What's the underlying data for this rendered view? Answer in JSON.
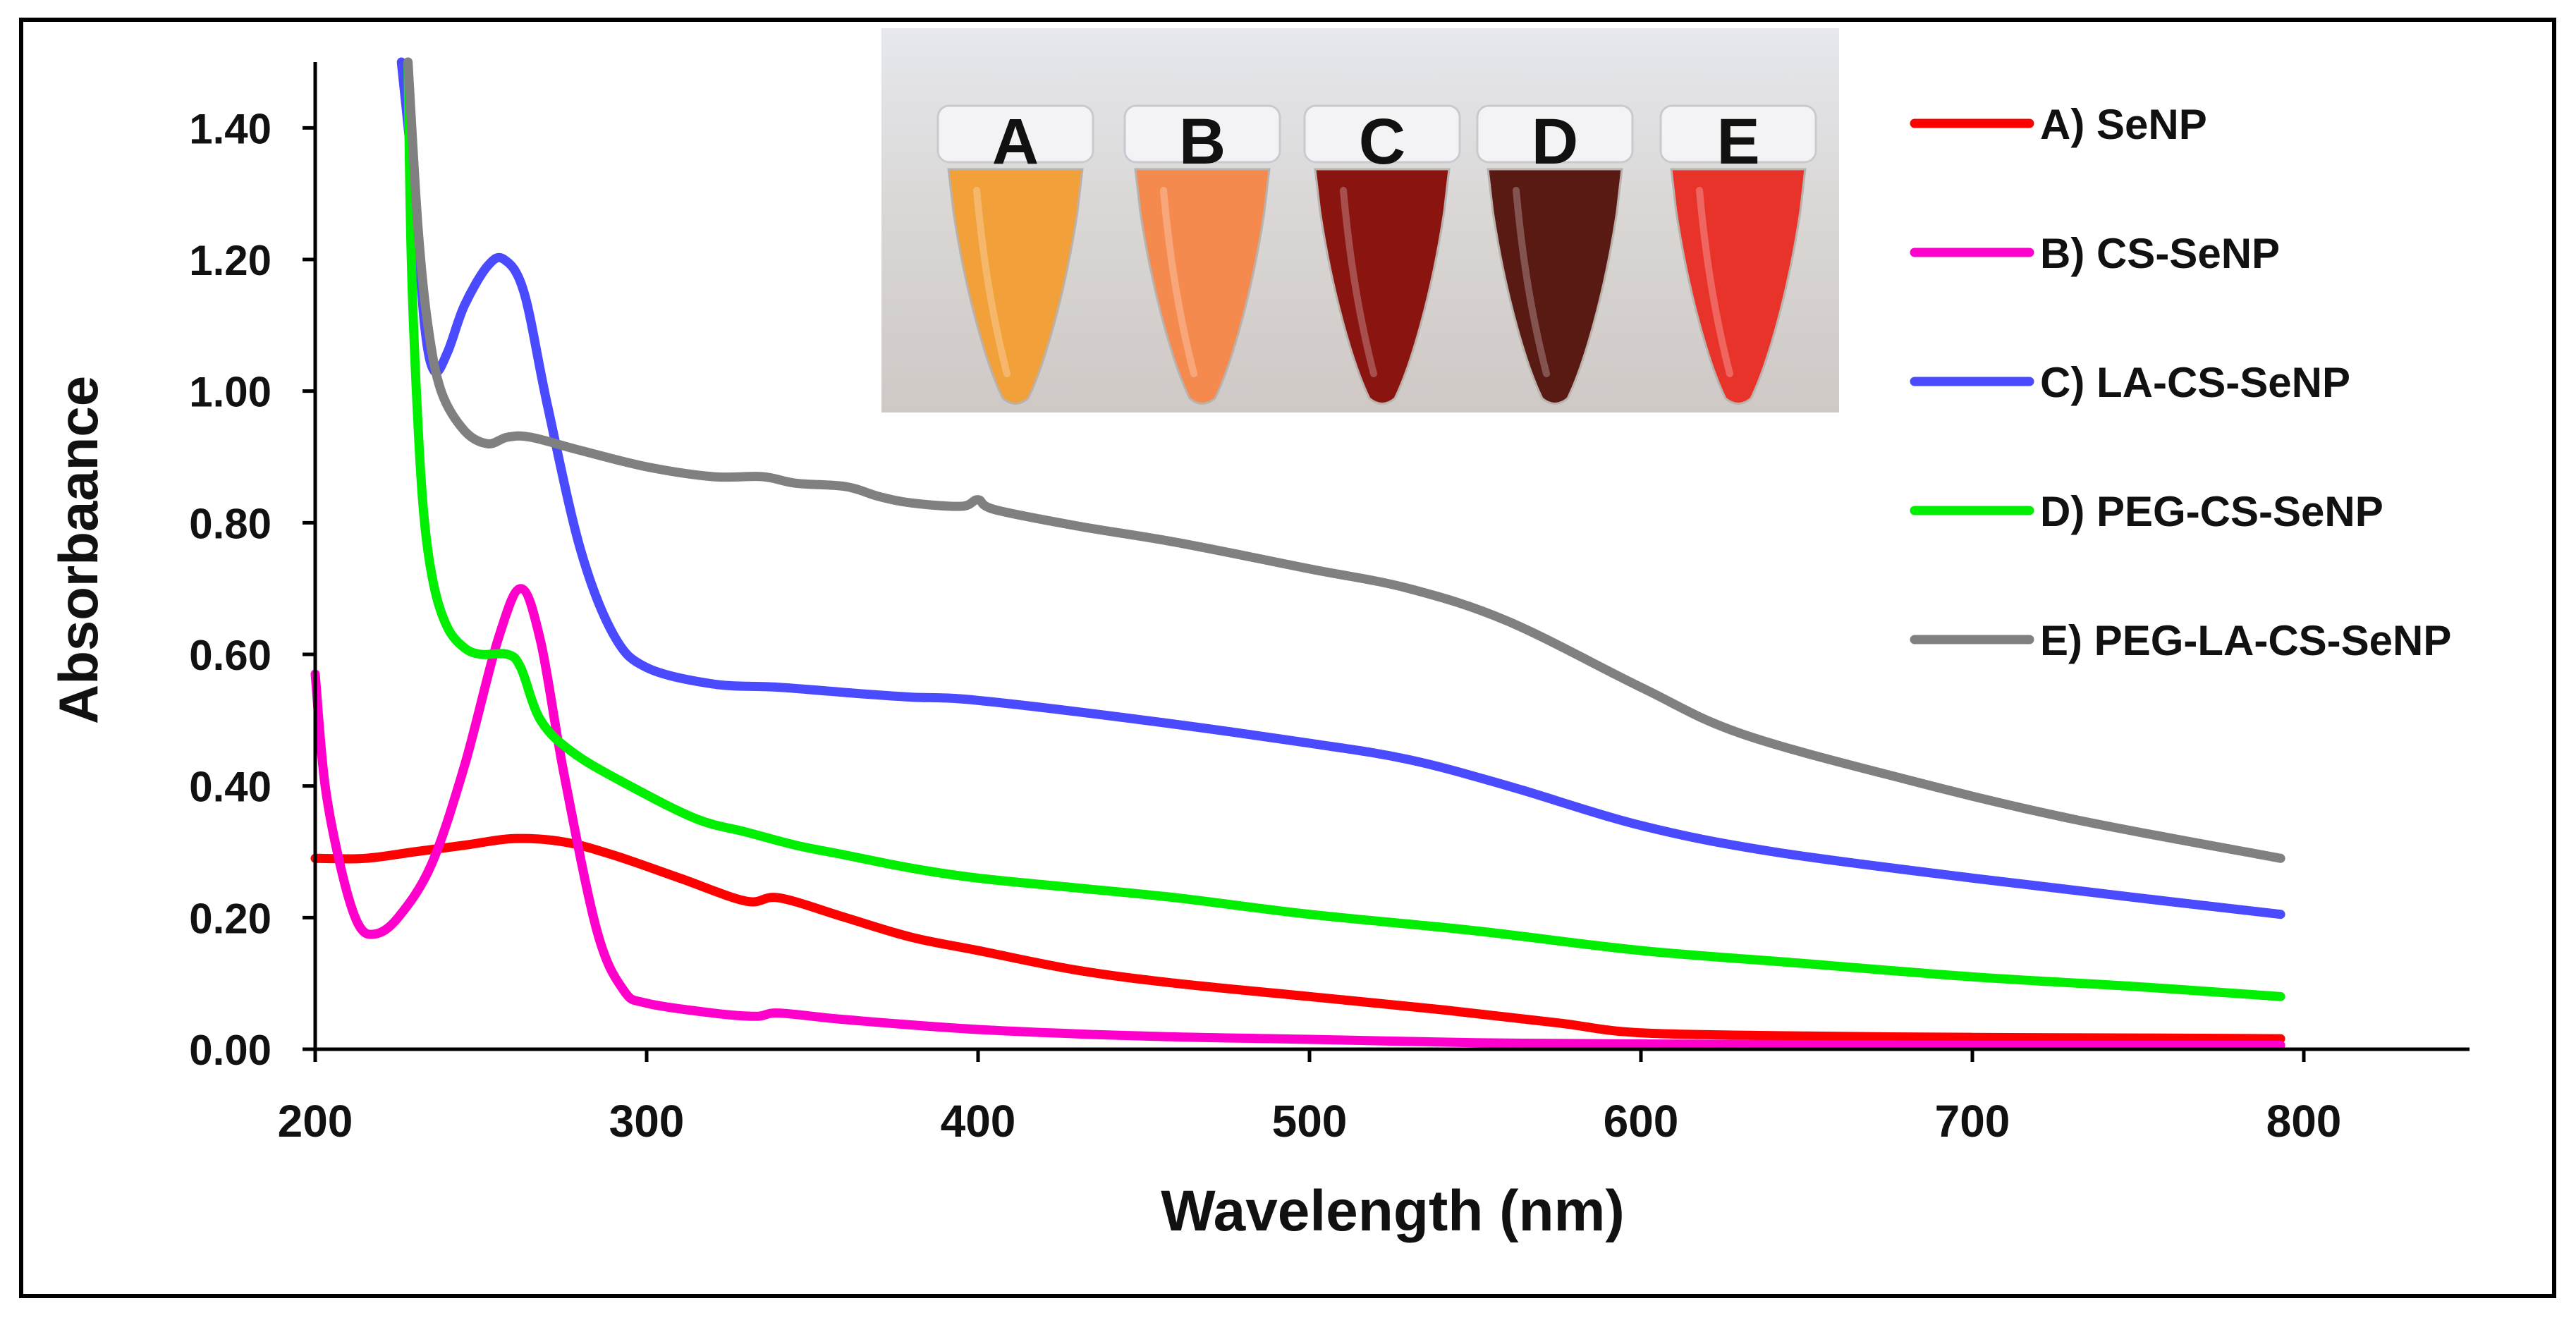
{
  "chart_data": {
    "type": "line",
    "title": "",
    "xlabel": "Wavelength (nm)",
    "ylabel": "Absorbaance",
    "xlim": [
      200,
      850
    ],
    "ylim": [
      0,
      1.5
    ],
    "x_ticks": [
      200,
      300,
      400,
      500,
      600,
      700,
      800
    ],
    "x_tick_labels": [
      "200",
      "300",
      "400",
      "500",
      "600",
      "700",
      "800"
    ],
    "y_ticks": [
      0,
      0.2,
      0.4,
      0.6,
      0.8,
      1.0,
      1.2,
      1.4
    ],
    "y_tick_labels": [
      "0.00",
      "0.20",
      "0.40",
      "0.60",
      "0.80",
      "1.00",
      "1.20",
      "1.40"
    ],
    "grid": false,
    "legend_position": "right",
    "series": [
      {
        "name": "A) SeNP",
        "color": "#ff0000",
        "points": [
          [
            200,
            0.29
          ],
          [
            215,
            0.29
          ],
          [
            230,
            0.3
          ],
          [
            245,
            0.31
          ],
          [
            260,
            0.32
          ],
          [
            275,
            0.315
          ],
          [
            290,
            0.295
          ],
          [
            310,
            0.26
          ],
          [
            330,
            0.225
          ],
          [
            340,
            0.23
          ],
          [
            360,
            0.2
          ],
          [
            380,
            0.17
          ],
          [
            400,
            0.15
          ],
          [
            430,
            0.12
          ],
          [
            460,
            0.1
          ],
          [
            500,
            0.08
          ],
          [
            540,
            0.06
          ],
          [
            575,
            0.04
          ],
          [
            600,
            0.025
          ],
          [
            650,
            0.02
          ],
          [
            700,
            0.018
          ],
          [
            750,
            0.017
          ],
          [
            793,
            0.016
          ]
        ]
      },
      {
        "name": "B) CS-SeNP",
        "color": "#ff00cc",
        "points": [
          [
            200,
            0.57
          ],
          [
            203,
            0.4
          ],
          [
            208,
            0.27
          ],
          [
            213,
            0.19
          ],
          [
            218,
            0.175
          ],
          [
            225,
            0.2
          ],
          [
            235,
            0.28
          ],
          [
            245,
            0.43
          ],
          [
            255,
            0.62
          ],
          [
            262,
            0.7
          ],
          [
            268,
            0.62
          ],
          [
            275,
            0.42
          ],
          [
            285,
            0.18
          ],
          [
            293,
            0.09
          ],
          [
            300,
            0.07
          ],
          [
            320,
            0.055
          ],
          [
            333,
            0.05
          ],
          [
            340,
            0.055
          ],
          [
            360,
            0.045
          ],
          [
            400,
            0.03
          ],
          [
            450,
            0.02
          ],
          [
            500,
            0.015
          ],
          [
            550,
            0.01
          ],
          [
            600,
            0.008
          ],
          [
            700,
            0.006
          ],
          [
            793,
            0.006
          ]
        ]
      },
      {
        "name": "C) LA-CS-SeNP",
        "color": "#4a4aff",
        "points": [
          [
            226,
            1.5
          ],
          [
            230,
            1.3
          ],
          [
            233,
            1.1
          ],
          [
            236,
            1.03
          ],
          [
            240,
            1.06
          ],
          [
            245,
            1.13
          ],
          [
            252,
            1.19
          ],
          [
            257,
            1.2
          ],
          [
            263,
            1.15
          ],
          [
            270,
            0.98
          ],
          [
            280,
            0.76
          ],
          [
            290,
            0.63
          ],
          [
            300,
            0.58
          ],
          [
            320,
            0.555
          ],
          [
            340,
            0.55
          ],
          [
            365,
            0.54
          ],
          [
            380,
            0.535
          ],
          [
            400,
            0.53
          ],
          [
            450,
            0.5
          ],
          [
            500,
            0.465
          ],
          [
            530,
            0.44
          ],
          [
            560,
            0.4
          ],
          [
            600,
            0.34
          ],
          [
            640,
            0.3
          ],
          [
            700,
            0.26
          ],
          [
            750,
            0.23
          ],
          [
            793,
            0.205
          ]
        ]
      },
      {
        "name": "D) PEG-CS-SeNP",
        "color": "#00ee00",
        "points": [
          [
            228,
            1.5
          ],
          [
            229,
            1.2
          ],
          [
            231,
            0.95
          ],
          [
            233,
            0.8
          ],
          [
            236,
            0.7
          ],
          [
            240,
            0.64
          ],
          [
            245,
            0.61
          ],
          [
            250,
            0.6
          ],
          [
            258,
            0.6
          ],
          [
            262,
            0.58
          ],
          [
            268,
            0.5
          ],
          [
            278,
            0.45
          ],
          [
            295,
            0.4
          ],
          [
            315,
            0.35
          ],
          [
            330,
            0.33
          ],
          [
            345,
            0.31
          ],
          [
            360,
            0.295
          ],
          [
            380,
            0.275
          ],
          [
            400,
            0.26
          ],
          [
            430,
            0.245
          ],
          [
            460,
            0.23
          ],
          [
            500,
            0.205
          ],
          [
            550,
            0.18
          ],
          [
            600,
            0.15
          ],
          [
            650,
            0.13
          ],
          [
            700,
            0.11
          ],
          [
            750,
            0.095
          ],
          [
            793,
            0.08
          ]
        ]
      },
      {
        "name": "E) PEG-LA-CS-SeNP",
        "color": "#808080",
        "points": [
          [
            228,
            1.5
          ],
          [
            231,
            1.25
          ],
          [
            234,
            1.1
          ],
          [
            238,
            1.0
          ],
          [
            245,
            0.94
          ],
          [
            252,
            0.92
          ],
          [
            258,
            0.93
          ],
          [
            265,
            0.93
          ],
          [
            280,
            0.91
          ],
          [
            300,
            0.885
          ],
          [
            320,
            0.87
          ],
          [
            335,
            0.87
          ],
          [
            345,
            0.86
          ],
          [
            360,
            0.855
          ],
          [
            370,
            0.84
          ],
          [
            380,
            0.83
          ],
          [
            395,
            0.825
          ],
          [
            400,
            0.835
          ],
          [
            405,
            0.82
          ],
          [
            430,
            0.795
          ],
          [
            460,
            0.77
          ],
          [
            500,
            0.73
          ],
          [
            530,
            0.7
          ],
          [
            560,
            0.65
          ],
          [
            600,
            0.55
          ],
          [
            630,
            0.48
          ],
          [
            680,
            0.41
          ],
          [
            730,
            0.35
          ],
          [
            793,
            0.29
          ]
        ]
      }
    ],
    "inset": {
      "description_labels": [
        "A",
        "B",
        "C",
        "D",
        "E"
      ],
      "tube_colors": [
        "#f2a03a",
        "#f48a4e",
        "#8a1410",
        "#5a1a14",
        "#e8332a"
      ]
    }
  }
}
